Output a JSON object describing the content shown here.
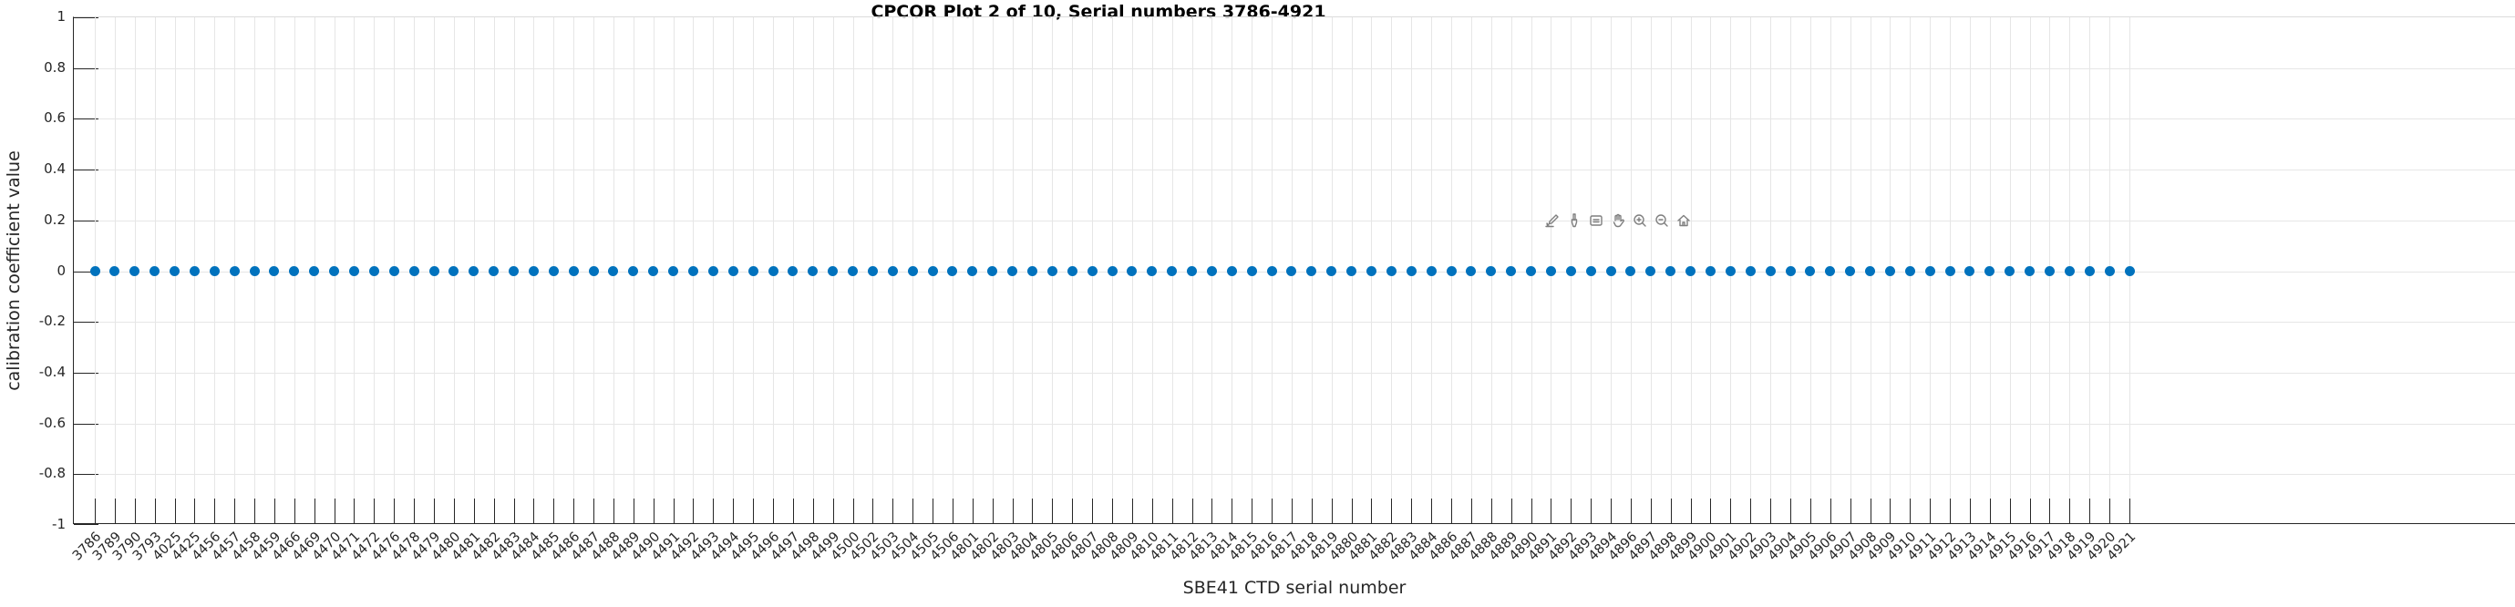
{
  "chart_data": {
    "type": "scatter",
    "title": "CPCOR Plot 2 of 10, Serial numbers 3786-4921",
    "xlabel": "SBE41 CTD serial number",
    "ylabel": "calibration coefficient value",
    "ylim": [
      -1,
      1
    ],
    "yticks": [
      1,
      0.8,
      0.6,
      0.4,
      0.2,
      0,
      -0.2,
      -0.4,
      -0.6,
      -0.8,
      -1
    ],
    "grid": true,
    "legend": "none",
    "marker": "filled-circle",
    "marker_color": "#0072BD",
    "categories": [
      "3786",
      "3789",
      "3790",
      "3793",
      "4025",
      "4425",
      "4456",
      "4457",
      "4458",
      "4459",
      "4466",
      "4469",
      "4470",
      "4471",
      "4472",
      "4476",
      "4478",
      "4479",
      "4480",
      "4481",
      "4482",
      "4483",
      "4484",
      "4485",
      "4486",
      "4487",
      "4488",
      "4489",
      "4490",
      "4491",
      "4492",
      "4493",
      "4494",
      "4495",
      "4496",
      "4497",
      "4498",
      "4499",
      "4500",
      "4502",
      "4503",
      "4504",
      "4505",
      "4506",
      "4801",
      "4802",
      "4803",
      "4804",
      "4805",
      "4806",
      "4807",
      "4808",
      "4809",
      "4810",
      "4811",
      "4812",
      "4813",
      "4814",
      "4815",
      "4816",
      "4817",
      "4818",
      "4819",
      "4880",
      "4881",
      "4882",
      "4883",
      "4884",
      "4886",
      "4887",
      "4888",
      "4889",
      "4890",
      "4891",
      "4892",
      "4893",
      "4894",
      "4896",
      "4897",
      "4898",
      "4899",
      "4900",
      "4901",
      "4902",
      "4903",
      "4904",
      "4905",
      "4906",
      "4907",
      "4908",
      "4909",
      "4910",
      "4911",
      "4912",
      "4913",
      "4914",
      "4915",
      "4916",
      "4917",
      "4918",
      "4919",
      "4920",
      "4921"
    ],
    "values": [
      0,
      0,
      0,
      0,
      0,
      0,
      0,
      0,
      0,
      0,
      0,
      0,
      0,
      0,
      0,
      0,
      0,
      0,
      0,
      0,
      0,
      0,
      0,
      0,
      0,
      0,
      0,
      0,
      0,
      0,
      0,
      0,
      0,
      0,
      0,
      0,
      0,
      0,
      0,
      0,
      0,
      0,
      0,
      0,
      0,
      0,
      0,
      0,
      0,
      0,
      0,
      0,
      0,
      0,
      0,
      0,
      0,
      0,
      0,
      0,
      0,
      0,
      0,
      0,
      0,
      0,
      0,
      0,
      0,
      0,
      0,
      0,
      0,
      0,
      0,
      0,
      0,
      0,
      0,
      0,
      0,
      0,
      0,
      0,
      0,
      0,
      0,
      0,
      0,
      0,
      0,
      0,
      0,
      0,
      0,
      0,
      0,
      0,
      0,
      0,
      0,
      0,
      0
    ]
  },
  "toolbar": {
    "icons": [
      "export-icon",
      "brush-icon",
      "datatips-icon",
      "pan-icon",
      "zoom-in-icon",
      "zoom-out-icon",
      "home-icon"
    ]
  }
}
